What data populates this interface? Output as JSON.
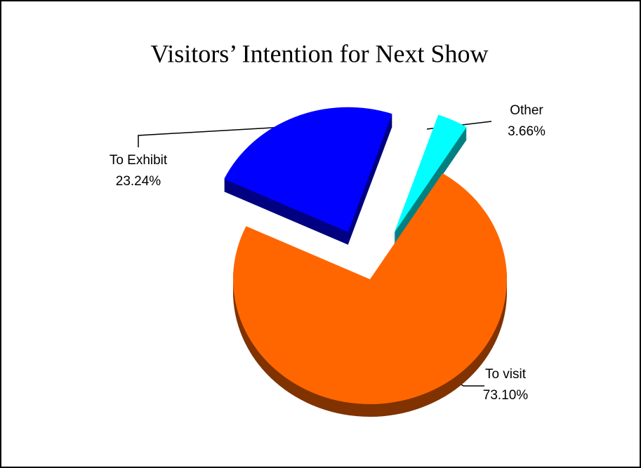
{
  "chart_data": {
    "type": "pie3d",
    "title": "Visitors’ Intention for Next Show",
    "categories": [
      "To visit",
      "To Exhibit",
      "Other"
    ],
    "values": [
      73.1,
      23.24,
      3.66
    ],
    "value_labels": [
      "73.10%",
      "23.24%",
      "3.66%"
    ],
    "colors": [
      "#ff6600",
      "#0000ff",
      "#00ffff"
    ]
  }
}
